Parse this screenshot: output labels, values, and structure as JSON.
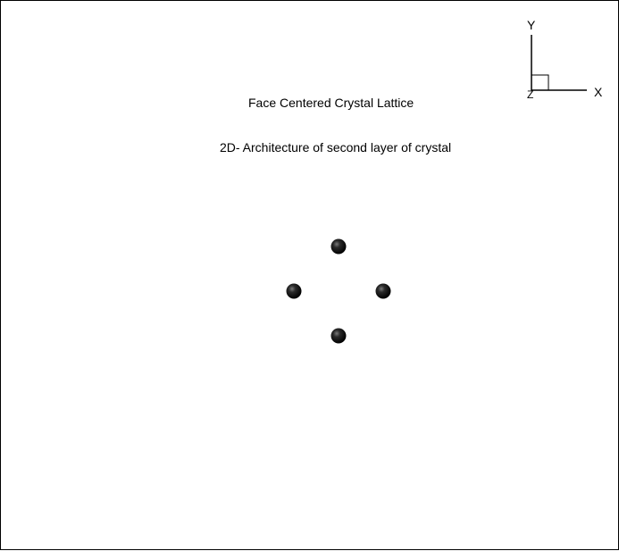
{
  "diagram": {
    "title": "Face Centered Crystal Lattice",
    "subtitle": "2D- Architecture of second layer of crystal",
    "axes": {
      "x_label": "X",
      "y_label": "Y",
      "z_label": "Z"
    },
    "atoms": [
      {
        "name": "atom-top"
      },
      {
        "name": "atom-left"
      },
      {
        "name": "atom-right"
      },
      {
        "name": "atom-bottom"
      }
    ],
    "colors": {
      "atom": "#111111",
      "line": "#000000",
      "background": "#ffffff"
    }
  }
}
